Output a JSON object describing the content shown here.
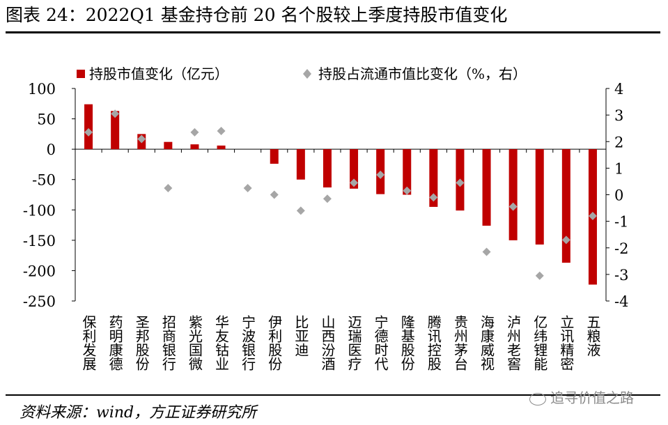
{
  "title": "图表 24：2022Q1 基金持仓前 20 名个股较上季度持股市值变化",
  "source": "资料来源：wind，方正证券研究所",
  "watermark": "追寻价值之路",
  "chart_data": {
    "type": "bar",
    "categories": [
      "保利发展",
      "药明康德",
      "圣邦股份",
      "招商银行",
      "紫光国微",
      "华友钴业",
      "宁波银行",
      "伊利股份",
      "比亚迪",
      "山西汾酒",
      "迈瑞医疗",
      "宁德时代",
      "隆基股份",
      "腾讯控股",
      "贵州茅台",
      "海康威视",
      "泸州老窖",
      "亿纬锂能",
      "立讯精密",
      "五粮液"
    ],
    "series": [
      {
        "name": "持股市值变化（亿元）",
        "type": "bar",
        "axis": "left",
        "color": "#C00000",
        "values": [
          74,
          63,
          25,
          12,
          8,
          6,
          0,
          -24,
          -50,
          -63,
          -65,
          -74,
          -75,
          -95,
          -101,
          -126,
          -150,
          -157,
          -187,
          -223
        ]
      },
      {
        "name": "持股占流通市值比变化（%，右）",
        "type": "scatter",
        "axis": "right",
        "color": "#A6A6A6",
        "values": [
          2.35,
          3.05,
          2.1,
          0.25,
          2.35,
          2.4,
          0.25,
          0.0,
          -0.6,
          -0.15,
          0.45,
          0.75,
          0.15,
          -0.1,
          0.45,
          -2.15,
          -0.45,
          -3.05,
          -1.7,
          -0.8
        ]
      }
    ],
    "y_left": {
      "ylim": [
        -250,
        100
      ],
      "ticks": [
        "100",
        "50",
        "0",
        "-50",
        "-100",
        "-150",
        "-200",
        "-250"
      ]
    },
    "y_right": {
      "ylim": [
        -4,
        4
      ],
      "ticks": [
        "4",
        "3",
        "2",
        "1",
        "0",
        "-1",
        "-2",
        "-3",
        "-4"
      ]
    },
    "legend": {
      "position": "top",
      "bar_label": "持股市值变化（亿元）",
      "marker_label": "持股占流通市值比变化（%，右）"
    },
    "grid": false
  }
}
